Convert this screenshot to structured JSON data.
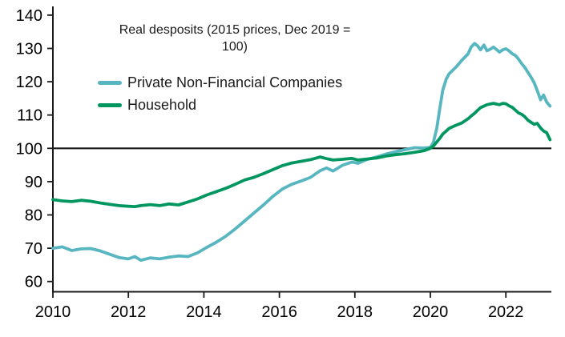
{
  "chart": {
    "title_line1": "Real desposits (2015 prices, Dec 2019 =",
    "title_line2": "100)"
  },
  "chart_data": {
    "type": "line",
    "title": "Real desposits (2015 prices, Dec 2019 = 100)",
    "xlabel": "",
    "ylabel": "",
    "grid": false,
    "legend_position": "upper-left-inside",
    "x_ticks": [
      2010,
      2012,
      2014,
      2016,
      2018,
      2020,
      2022
    ],
    "y_ticks": [
      60,
      70,
      80,
      90,
      100,
      110,
      120,
      130,
      140
    ],
    "x_range": [
      2010,
      2023.2
    ],
    "y_axis_range": [
      57,
      142
    ],
    "baseline": 100,
    "axis_color": "#1a1a1a",
    "x": [
      2010.0,
      2010.25,
      2010.5,
      2010.75,
      2011.0,
      2011.25,
      2011.5,
      2011.75,
      2012.0,
      2012.17,
      2012.33,
      2012.58,
      2012.83,
      2013.08,
      2013.33,
      2013.58,
      2013.83,
      2014.08,
      2014.33,
      2014.58,
      2014.83,
      2015.08,
      2015.33,
      2015.58,
      2015.83,
      2016.08,
      2016.33,
      2016.58,
      2016.83,
      2017.08,
      2017.25,
      2017.42,
      2017.67,
      2017.92,
      2018.08,
      2018.33,
      2018.58,
      2018.83,
      2019.08,
      2019.33,
      2019.58,
      2019.83,
      2020.0,
      2020.08,
      2020.17,
      2020.25,
      2020.33,
      2020.42,
      2020.5,
      2020.67,
      2020.83,
      2021.0,
      2021.08,
      2021.17,
      2021.25,
      2021.33,
      2021.42,
      2021.5,
      2021.58,
      2021.67,
      2021.75,
      2021.83,
      2021.92,
      2022.0,
      2022.08,
      2022.17,
      2022.25,
      2022.33,
      2022.42,
      2022.5,
      2022.58,
      2022.67,
      2022.75,
      2022.83,
      2022.92,
      2023.0,
      2023.08,
      2023.17
    ],
    "series": [
      {
        "name": "Private Non-Financial Companies",
        "color": "#58b6c0",
        "values": [
          70.0,
          70.4,
          69.3,
          69.8,
          69.9,
          69.2,
          68.2,
          67.2,
          66.8,
          67.5,
          66.4,
          67.1,
          66.8,
          67.3,
          67.7,
          67.5,
          68.6,
          70.3,
          71.8,
          73.6,
          75.8,
          78.2,
          80.6,
          83.0,
          85.6,
          87.8,
          89.2,
          90.2,
          91.3,
          93.3,
          94.1,
          93.2,
          94.9,
          95.9,
          95.5,
          96.7,
          97.4,
          98.3,
          99.0,
          99.6,
          100.2,
          100.1,
          100.3,
          101.8,
          106.0,
          112.0,
          117.5,
          120.8,
          122.4,
          124.3,
          126.4,
          128.4,
          130.4,
          131.5,
          130.8,
          129.6,
          131.0,
          129.3,
          129.7,
          130.4,
          129.7,
          128.9,
          129.6,
          129.9,
          129.3,
          128.4,
          127.9,
          126.9,
          125.4,
          124.3,
          122.9,
          121.3,
          119.7,
          117.4,
          114.6,
          116.0,
          113.9,
          112.7
        ]
      },
      {
        "name": "Household",
        "color": "#00965f",
        "values": [
          84.6,
          84.2,
          84.0,
          84.4,
          84.1,
          83.6,
          83.2,
          82.8,
          82.6,
          82.5,
          82.8,
          83.1,
          82.8,
          83.3,
          83.0,
          83.9,
          84.8,
          86.0,
          87.0,
          88.0,
          89.2,
          90.5,
          91.3,
          92.4,
          93.6,
          94.8,
          95.6,
          96.1,
          96.6,
          97.4,
          96.9,
          96.5,
          96.7,
          97.0,
          96.5,
          96.8,
          97.1,
          97.7,
          98.1,
          98.4,
          98.8,
          99.3,
          100.0,
          100.7,
          101.9,
          103.0,
          104.3,
          105.2,
          106.0,
          106.9,
          107.6,
          108.9,
          109.7,
          110.5,
          111.4,
          112.2,
          112.7,
          113.1,
          113.3,
          113.5,
          113.3,
          113.1,
          113.5,
          113.4,
          112.8,
          112.3,
          111.5,
          110.7,
          110.2,
          109.5,
          108.5,
          107.8,
          107.2,
          107.5,
          106.1,
          105.2,
          104.7,
          102.6
        ]
      }
    ]
  }
}
